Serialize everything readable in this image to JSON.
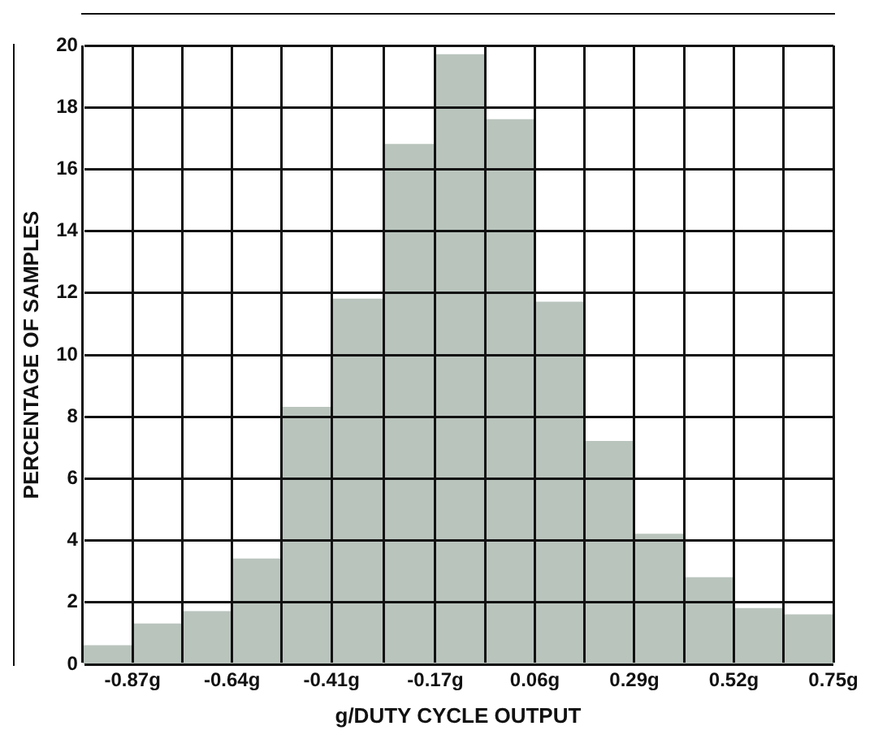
{
  "chart_data": {
    "type": "histogram",
    "xlabel": "g/DUTY CYCLE OUTPUT",
    "ylabel": "PERCENTAGE OF SAMPLES",
    "bins": [
      -0.985,
      -0.87,
      -0.755,
      -0.64,
      -0.525,
      -0.41,
      -0.29,
      -0.17,
      -0.055,
      0.06,
      0.175,
      0.29,
      0.405,
      0.52,
      0.635,
      0.75
    ],
    "values": [
      0.6,
      1.3,
      1.7,
      3.4,
      8.3,
      11.8,
      16.8,
      19.7,
      17.6,
      11.7,
      7.2,
      4.2,
      2.8,
      1.8,
      1.6
    ],
    "color": "#b9c4bd",
    "xlim": [
      -0.985,
      0.75
    ],
    "xticks": [
      {
        "value": -0.985,
        "label": null
      },
      {
        "value": -0.87,
        "label": "-0.87g"
      },
      {
        "value": -0.755,
        "label": null
      },
      {
        "value": -0.64,
        "label": "-0.64g"
      },
      {
        "value": -0.525,
        "label": null
      },
      {
        "value": -0.41,
        "label": "-0.41g"
      },
      {
        "value": -0.29,
        "label": null
      },
      {
        "value": -0.17,
        "label": "-0.17g"
      },
      {
        "value": -0.055,
        "label": null
      },
      {
        "value": 0.06,
        "label": "0.06g"
      },
      {
        "value": 0.175,
        "label": null
      },
      {
        "value": 0.29,
        "label": "0.29g"
      },
      {
        "value": 0.405,
        "label": null
      },
      {
        "value": 0.52,
        "label": "0.52g"
      },
      {
        "value": 0.635,
        "label": null
      },
      {
        "value": 0.75,
        "label": "0.75g"
      }
    ],
    "ylim": [
      0,
      20
    ],
    "yticks": [
      0,
      2,
      4,
      6,
      8,
      10,
      12,
      14,
      16,
      18,
      20
    ],
    "grid": true,
    "legend": false
  }
}
